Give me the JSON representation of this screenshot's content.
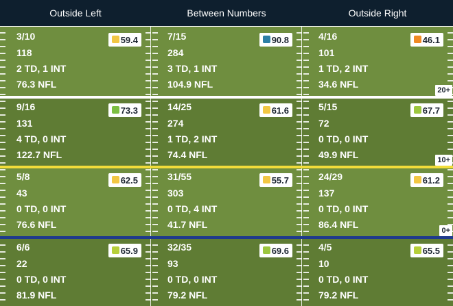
{
  "columns": [
    "Outside Left",
    "Between Numbers",
    "Outside Right"
  ],
  "rows": [
    {
      "cells": [
        {
          "comp": "3/10",
          "yards": "118",
          "td_int": "2 TD, 1 INT",
          "rating": "76.3 NFL",
          "grade": "59.4",
          "grade_color": "#f2c744"
        },
        {
          "comp": "7/15",
          "yards": "284",
          "td_int": "3 TD, 1 INT",
          "rating": "104.9 NFL",
          "grade": "90.8",
          "grade_color": "#2d7fa6"
        },
        {
          "comp": "4/16",
          "yards": "101",
          "td_int": "1 TD, 2 INT",
          "rating": "34.6 NFL",
          "grade": "46.1",
          "grade_color": "#f08a24"
        }
      ],
      "marker": "20+"
    },
    {
      "cells": [
        {
          "comp": "9/16",
          "yards": "131",
          "td_int": "4 TD, 0 INT",
          "rating": "122.7 NFL",
          "grade": "73.3",
          "grade_color": "#7cbf42"
        },
        {
          "comp": "14/25",
          "yards": "274",
          "td_int": "1 TD, 2 INT",
          "rating": "74.4 NFL",
          "grade": "61.6",
          "grade_color": "#f2c744"
        },
        {
          "comp": "5/15",
          "yards": "72",
          "td_int": "0 TD, 0 INT",
          "rating": "49.9 NFL",
          "grade": "67.7",
          "grade_color": "#9cc63f"
        }
      ],
      "marker": "10+"
    },
    {
      "cells": [
        {
          "comp": "5/8",
          "yards": "43",
          "td_int": "0 TD, 0 INT",
          "rating": "76.6 NFL",
          "grade": "62.5",
          "grade_color": "#f2c744"
        },
        {
          "comp": "31/55",
          "yards": "303",
          "td_int": "0 TD, 4 INT",
          "rating": "41.7 NFL",
          "grade": "55.7",
          "grade_color": "#f2c744"
        },
        {
          "comp": "24/29",
          "yards": "137",
          "td_int": "0 TD, 0 INT",
          "rating": "86.4 NFL",
          "grade": "61.2",
          "grade_color": "#f2c744"
        }
      ],
      "marker": "0+"
    },
    {
      "cells": [
        {
          "comp": "6/6",
          "yards": "22",
          "td_int": "0 TD, 0 INT",
          "rating": "81.9 NFL",
          "grade": "65.9",
          "grade_color": "#b6cf3a"
        },
        {
          "comp": "32/35",
          "yards": "93",
          "td_int": "0 TD, 0 INT",
          "rating": "79.2 NFL",
          "grade": "69.6",
          "grade_color": "#9cc63f"
        },
        {
          "comp": "4/5",
          "yards": "10",
          "td_int": "0 TD, 0 INT",
          "rating": "79.2 NFL",
          "grade": "65.5",
          "grade_color": "#b6cf3a"
        }
      ],
      "marker": ""
    }
  ],
  "colors": {
    "header_bg": "#0e1f2e",
    "line_20": "#ffffff",
    "line_10": "#f2dd3a",
    "line_0": "#1f3a8c"
  }
}
